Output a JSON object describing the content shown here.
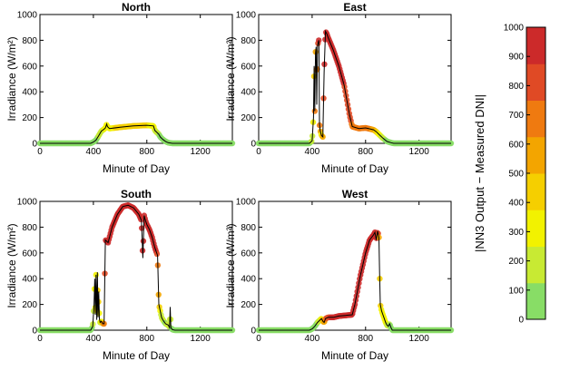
{
  "colorbar": {
    "label": "|NN3 Output − Measured DNI|",
    "ticks": [
      "1000",
      "900",
      "800",
      "700",
      "600",
      "500",
      "400",
      "300",
      "200",
      "100",
      "0"
    ],
    "min": 0,
    "max": 1000,
    "colors": [
      "#88dd66",
      "#c8ea33",
      "#f2f200",
      "#f5cf00",
      "#f3a500",
      "#ef7a10",
      "#e04a25",
      "#cc2a2a"
    ]
  },
  "chart_data": [
    {
      "type": "scatter",
      "title": "North",
      "xlabel": "Minute of Day",
      "ylabel": "Irradiance (W/m²)",
      "xlim": [
        0,
        1440
      ],
      "ylim": [
        0,
        1000
      ],
      "xticks": [
        "0",
        "400",
        "800",
        "1200"
      ],
      "yticks": [
        "0",
        "200",
        "400",
        "600",
        "800",
        "1000"
      ],
      "line": {
        "x": [
          0,
          380,
          400,
          420,
          440,
          460,
          480,
          490,
          500,
          505,
          520,
          600,
          700,
          800,
          850,
          860,
          880,
          890,
          900,
          920,
          940,
          960,
          990,
          1010,
          1440
        ],
        "y": [
          0,
          0,
          10,
          25,
          60,
          95,
          110,
          120,
          150,
          130,
          115,
          125,
          135,
          140,
          135,
          100,
          80,
          70,
          50,
          30,
          15,
          5,
          0,
          0,
          0
        ]
      },
      "error": {
        "x": [
          0,
          380,
          420,
          480,
          490,
          500,
          520,
          600,
          700,
          800,
          850,
          880,
          920,
          960,
          1010,
          1440
        ],
        "y": [
          0,
          10,
          80,
          250,
          300,
          350,
          350,
          400,
          450,
          400,
          300,
          150,
          60,
          10,
          0,
          0
        ]
      }
    },
    {
      "type": "scatter",
      "title": "East",
      "xlabel": "Minute of Day",
      "ylabel": "Irradiance (W/m²)",
      "xlim": [
        0,
        1440
      ],
      "ylim": [
        0,
        1000
      ],
      "xticks": [
        "0",
        "400",
        "800",
        "1200"
      ],
      "yticks": [
        "0",
        "200",
        "400",
        "600",
        "800",
        "1000"
      ],
      "line": {
        "x": [
          0,
          380,
          400,
          410,
          415,
          420,
          425,
          430,
          435,
          440,
          445,
          450,
          455,
          460,
          470,
          480,
          490,
          500,
          510,
          520,
          560,
          600,
          640,
          680,
          700,
          750,
          800,
          840,
          860,
          880,
          900,
          930,
          960,
          990,
          1010,
          1440
        ],
        "y": [
          0,
          0,
          20,
          200,
          600,
          250,
          700,
          750,
          300,
          760,
          780,
          800,
          150,
          100,
          60,
          50,
          550,
          870,
          850,
          820,
          720,
          600,
          450,
          220,
          130,
          115,
          120,
          110,
          105,
          90,
          70,
          40,
          15,
          5,
          0,
          0
        ]
      },
      "error": {
        "x": [
          0,
          380,
          410,
          420,
          430,
          440,
          450,
          470,
          490,
          500,
          520,
          600,
          680,
          700,
          750,
          800,
          860,
          900,
          960,
          1010,
          1440
        ],
        "y": [
          0,
          20,
          300,
          700,
          450,
          800,
          950,
          280,
          950,
          1000,
          980,
          930,
          820,
          700,
          700,
          680,
          600,
          300,
          60,
          0,
          0
        ]
      }
    },
    {
      "type": "scatter",
      "title": "South",
      "xlabel": "Minute of Day",
      "ylabel": "Irradiance (W/m²)",
      "xlim": [
        0,
        1440
      ],
      "ylim": [
        0,
        1000
      ],
      "xticks": [
        "0",
        "400",
        "800",
        "1200"
      ],
      "yticks": [
        "0",
        "200",
        "400",
        "600",
        "800",
        "1000"
      ],
      "line": {
        "x": [
          0,
          380,
          395,
          405,
          410,
          415,
          420,
          425,
          430,
          435,
          440,
          445,
          450,
          460,
          470,
          480,
          490,
          500,
          510,
          520,
          540,
          580,
          620,
          660,
          700,
          740,
          760,
          770,
          780,
          790,
          800,
          820,
          840,
          860,
          880,
          890,
          900,
          910,
          920,
          940,
          960,
          970,
          975,
          980,
          990,
          1010,
          1440
        ],
        "y": [
          0,
          0,
          30,
          200,
          400,
          120,
          430,
          80,
          450,
          100,
          300,
          90,
          60,
          70,
          50,
          50,
          700,
          690,
          680,
          720,
          800,
          900,
          960,
          970,
          950,
          900,
          850,
          560,
          890,
          850,
          820,
          780,
          720,
          640,
          580,
          200,
          150,
          100,
          80,
          50,
          40,
          20,
          180,
          20,
          5,
          0,
          0
        ]
      },
      "error": {
        "x": [
          0,
          380,
          400,
          420,
          440,
          450,
          470,
          490,
          500,
          520,
          540,
          600,
          700,
          760,
          800,
          860,
          880,
          900,
          940,
          970,
          990,
          1010,
          1440
        ],
        "y": [
          0,
          20,
          200,
          350,
          450,
          220,
          400,
          900,
          980,
          990,
          1000,
          1000,
          1000,
          950,
          1000,
          950,
          800,
          250,
          100,
          200,
          20,
          0,
          0
        ]
      }
    },
    {
      "type": "scatter",
      "title": "West",
      "xlabel": "Minute of Day",
      "ylabel": "Irradiance (W/m²)",
      "xlim": [
        0,
        1440
      ],
      "ylim": [
        0,
        1000
      ],
      "xticks": [
        "0",
        "400",
        "800",
        "1200"
      ],
      "yticks": [
        "0",
        "200",
        "400",
        "600",
        "800",
        "1000"
      ],
      "line": {
        "x": [
          0,
          380,
          400,
          420,
          440,
          460,
          470,
          480,
          490,
          500,
          520,
          560,
          600,
          650,
          700,
          720,
          760,
          800,
          830,
          860,
          870,
          880,
          890,
          900,
          905,
          910,
          920,
          930,
          940,
          950,
          960,
          970,
          980,
          990,
          1000,
          1440
        ],
        "y": [
          0,
          0,
          10,
          30,
          60,
          80,
          90,
          70,
          60,
          90,
          100,
          100,
          110,
          115,
          120,
          200,
          420,
          600,
          700,
          740,
          760,
          700,
          770,
          720,
          450,
          200,
          150,
          120,
          90,
          60,
          40,
          30,
          50,
          20,
          0,
          0
        ]
      },
      "error": {
        "x": [
          0,
          380,
          420,
          460,
          500,
          560,
          650,
          700,
          760,
          800,
          860,
          890,
          900,
          920,
          950,
          980,
          1000,
          1440
        ],
        "y": [
          0,
          10,
          40,
          200,
          700,
          1000,
          1000,
          1000,
          1000,
          980,
          950,
          900,
          550,
          350,
          300,
          120,
          0,
          0
        ]
      }
    }
  ]
}
